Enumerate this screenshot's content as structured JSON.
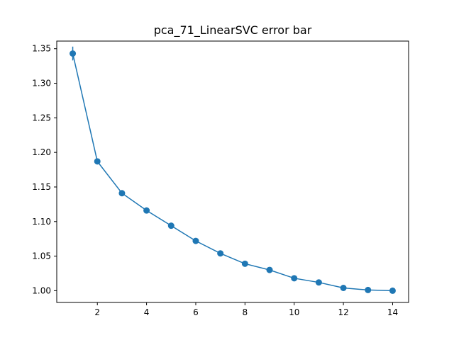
{
  "chart_data": {
    "type": "line",
    "title": "pca_71_LinearSVC error bar",
    "xlabel": "",
    "ylabel": "",
    "xlim": [
      0.35,
      14.65
    ],
    "ylim": [
      0.983,
      1.361
    ],
    "xticks": [
      2,
      4,
      6,
      8,
      10,
      12,
      14
    ],
    "yticks": [
      1.0,
      1.05,
      1.1,
      1.15,
      1.2,
      1.25,
      1.3,
      1.35
    ],
    "ytick_labels": [
      "1.00",
      "1.05",
      "1.10",
      "1.15",
      "1.20",
      "1.25",
      "1.30",
      "1.35"
    ],
    "grid": false,
    "series": [
      {
        "color": "#1f77b4",
        "marker": "circle",
        "x": [
          1,
          2,
          3,
          4,
          5,
          6,
          7,
          8,
          9,
          10,
          11,
          12,
          13,
          14
        ],
        "y": [
          1.343,
          1.187,
          1.141,
          1.116,
          1.094,
          1.072,
          1.054,
          1.039,
          1.03,
          1.018,
          1.012,
          1.004,
          1.001,
          1.0
        ],
        "err": [
          0.01,
          0.003,
          0.003,
          0.003,
          0.002,
          0.002,
          0.002,
          0.002,
          0.002,
          0.002,
          0.002,
          0.002,
          0.002,
          0.001
        ]
      }
    ]
  }
}
